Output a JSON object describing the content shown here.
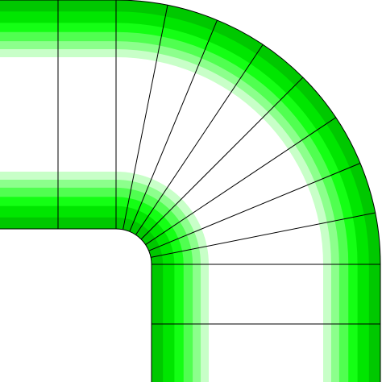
{
  "diagram": {
    "kind": "pipe-elbow-mesh",
    "bend_angle_deg": 90,
    "straight_segments_per_leg": 2,
    "bend_sectors": 8,
    "band_colors_outer_to_inner": [
      "#00c800",
      "#00e600",
      "#14ff14",
      "#50ff50",
      "#8cff8c",
      "#c8ffc8",
      "#ffffff"
    ],
    "mesh_line_color": "#000000",
    "background_color": "#ffffff"
  }
}
